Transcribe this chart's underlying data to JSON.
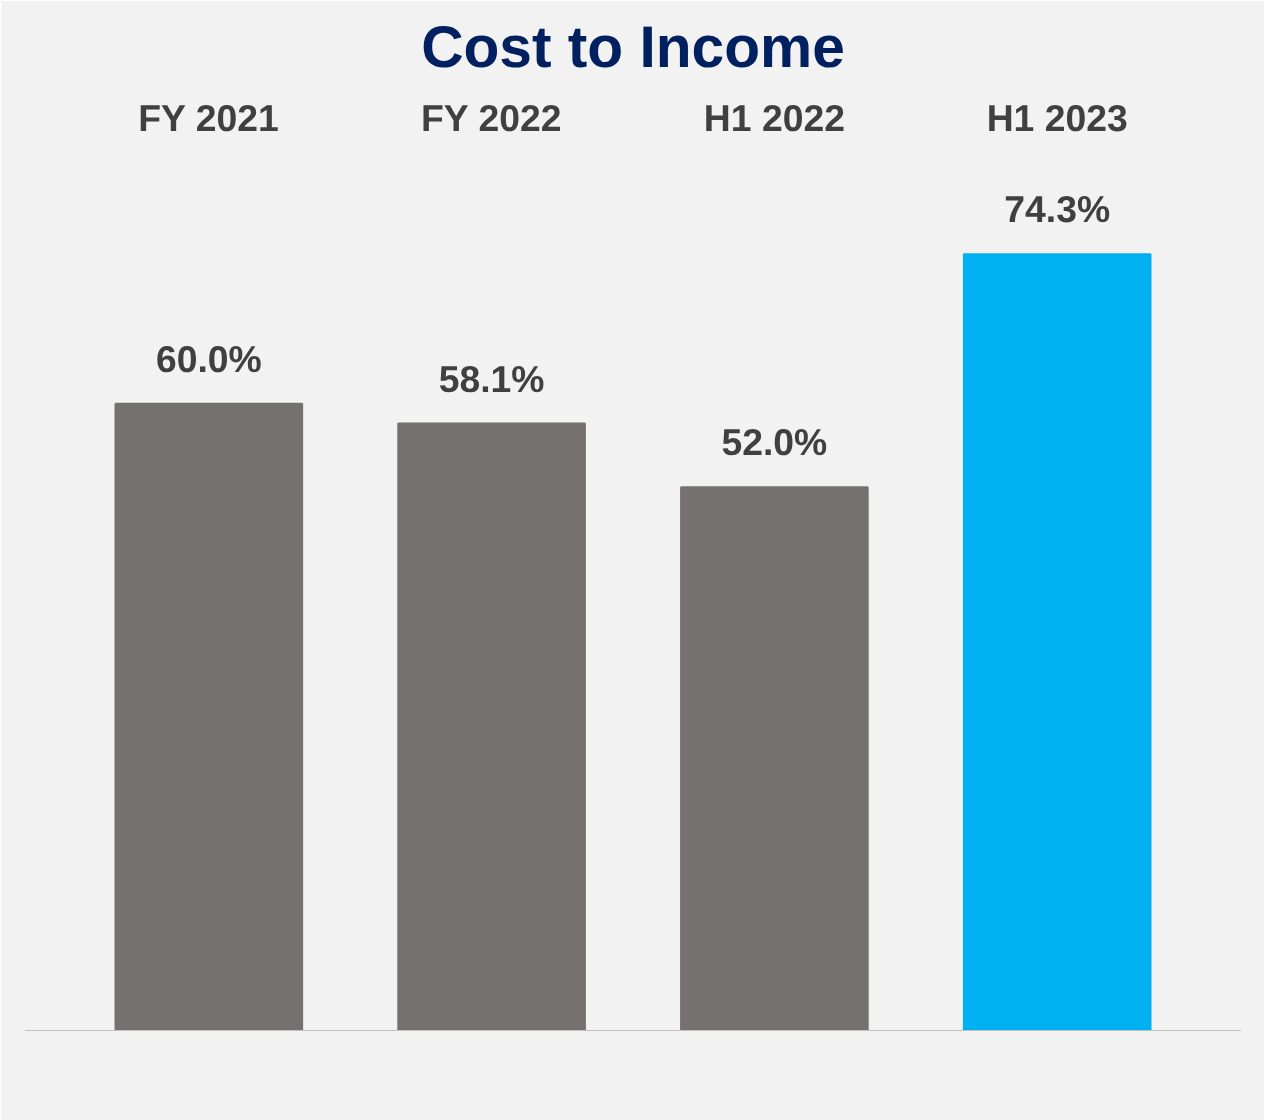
{
  "chart_data": {
    "type": "bar",
    "title": "Cost to Income",
    "categories": [
      "FY 2021",
      "FY 2022",
      "H1 2022",
      "H1 2023"
    ],
    "values": [
      60.0,
      58.1,
      52.0,
      74.3
    ],
    "colors": [
      "#767171",
      "#767171",
      "#767171",
      "#00b0f0"
    ],
    "value_labels": [
      "60.0%",
      "58.1%",
      "52.0%",
      "74.3%"
    ],
    "grid": false
  }
}
